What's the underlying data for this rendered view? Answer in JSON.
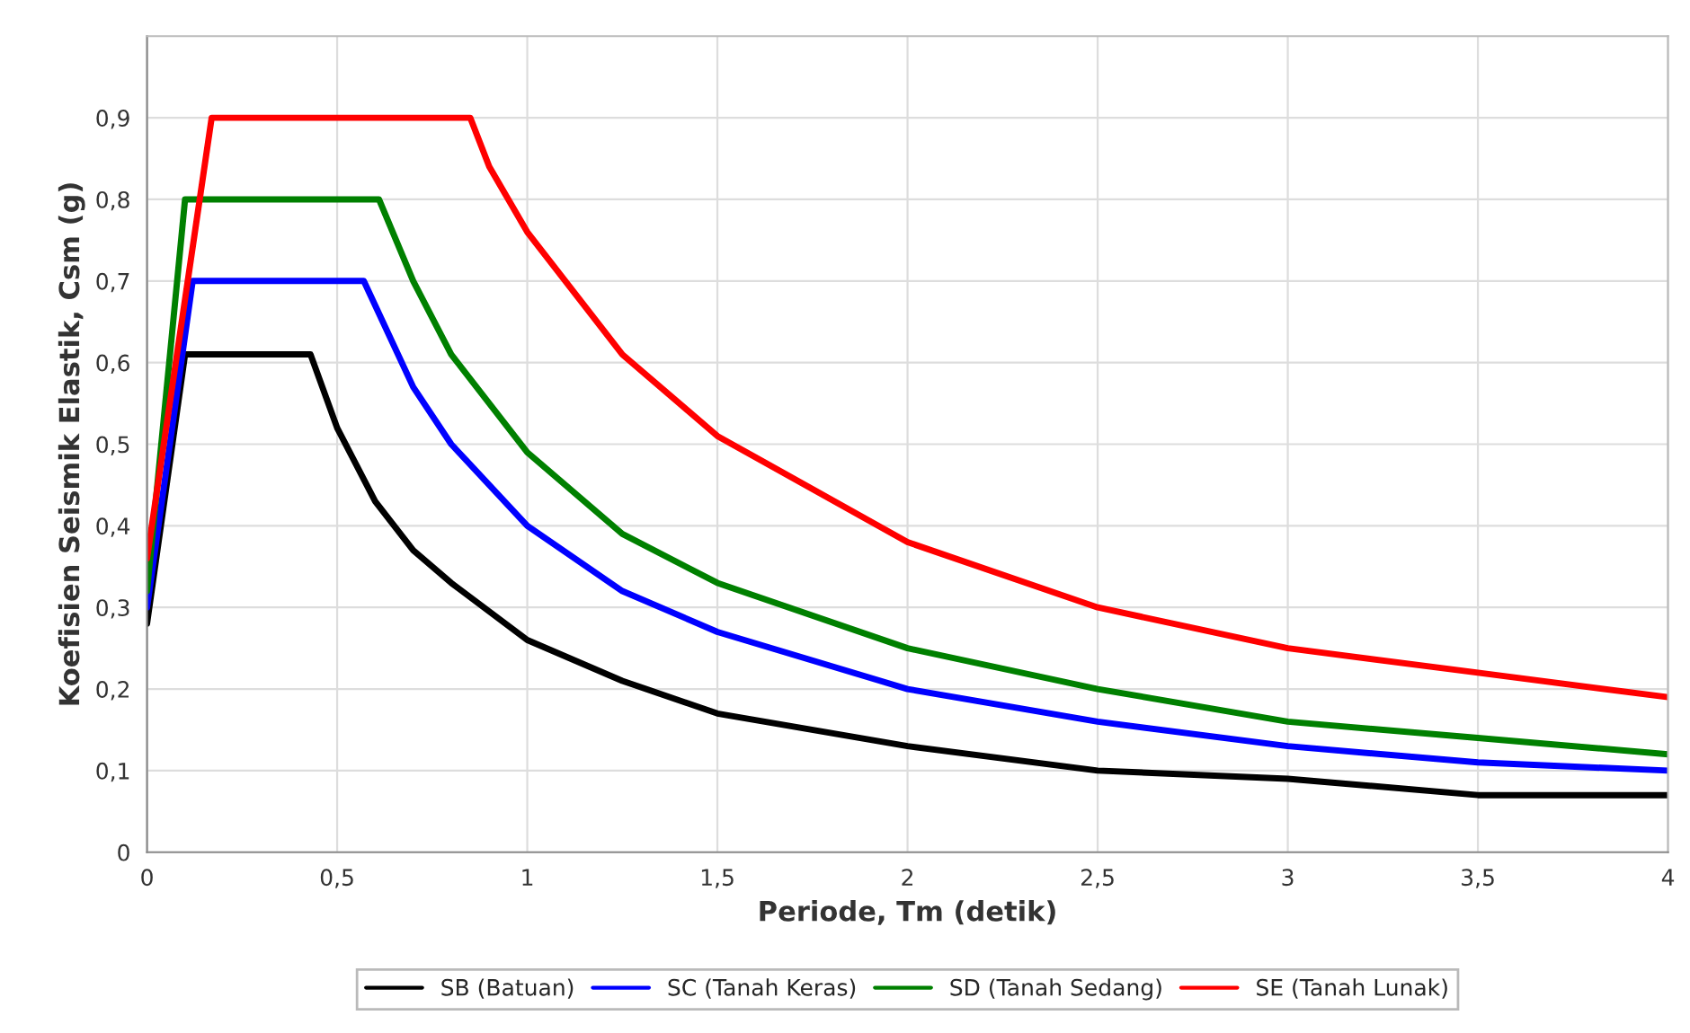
{
  "chart_data": {
    "type": "line",
    "xlabel": "Periode, Tm (detik)",
    "ylabel": "Koefisien Seismik Elastik, Csm (g)",
    "xlim": [
      0,
      4
    ],
    "ylim": [
      0,
      1.0
    ],
    "xticks": [
      0,
      {
        "value": 0.5,
        "label": "0,5"
      },
      1,
      {
        "value": 1.5,
        "label": "1,5"
      },
      2,
      {
        "value": 2.5,
        "label": "2,5"
      },
      3,
      {
        "value": 3.5,
        "label": "3,5"
      },
      4
    ],
    "yticks": [
      0,
      {
        "value": 0.1,
        "label": "0,1"
      },
      {
        "value": 0.2,
        "label": "0,2"
      },
      {
        "value": 0.3,
        "label": "0,3"
      },
      {
        "value": 0.4,
        "label": "0,4"
      },
      {
        "value": 0.5,
        "label": "0,5"
      },
      {
        "value": 0.6,
        "label": "0,6"
      },
      {
        "value": 0.7,
        "label": "0,7"
      },
      {
        "value": 0.8,
        "label": "0,8"
      },
      {
        "value": 0.9,
        "label": "0,9"
      }
    ],
    "grid": true,
    "legend": "bottom",
    "marker": "none",
    "line_style": "solid",
    "series": [
      {
        "name": "SB (Batuan)",
        "color": "#000000",
        "x": [
          0,
          0.1,
          0.43,
          0.5,
          0.6,
          0.7,
          0.8,
          1,
          1.25,
          1.5,
          2,
          2.5,
          3,
          3.5,
          4
        ],
        "values": [
          0.28,
          0.61,
          0.61,
          0.52,
          0.43,
          0.37,
          0.33,
          0.26,
          0.21,
          0.17,
          0.13,
          0.1,
          0.09,
          0.07,
          0.07
        ]
      },
      {
        "name": "SC (Tanah Keras)",
        "color": "#0000ff",
        "x": [
          0,
          0.12,
          0.57,
          0.6,
          0.7,
          0.8,
          1,
          1.25,
          1.5,
          2,
          2.5,
          3,
          3.5,
          4
        ],
        "values": [
          0.3,
          0.7,
          0.7,
          0.67,
          0.57,
          0.5,
          0.4,
          0.32,
          0.27,
          0.2,
          0.16,
          0.13,
          0.11,
          0.1
        ]
      },
      {
        "name": "SD (Tanah Sedang)",
        "color": "#008000",
        "x": [
          0,
          0.1,
          0.61,
          0.7,
          0.8,
          1,
          1.25,
          1.5,
          2,
          2.5,
          3,
          3.5,
          4
        ],
        "values": [
          0.32,
          0.8,
          0.8,
          0.7,
          0.61,
          0.49,
          0.39,
          0.33,
          0.25,
          0.2,
          0.16,
          0.14,
          0.12
        ]
      },
      {
        "name": "SE (Tanah Lunak)",
        "color": "#ff0000",
        "x": [
          0,
          0.17,
          0.85,
          0.9,
          1,
          1.25,
          1.5,
          2,
          2.5,
          3,
          3.5,
          4
        ],
        "values": [
          0.36,
          0.9,
          0.9,
          0.84,
          0.76,
          0.61,
          0.51,
          0.38,
          0.3,
          0.25,
          0.22,
          0.19
        ]
      }
    ]
  }
}
